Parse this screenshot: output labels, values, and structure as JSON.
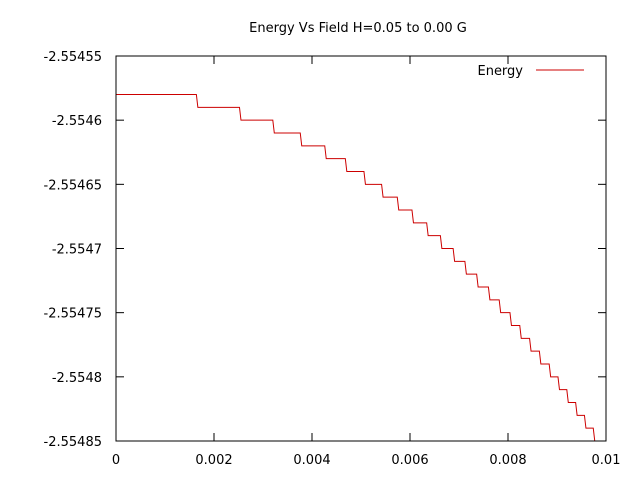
{
  "chart_data": {
    "type": "line",
    "title": "Energy Vs Field H=0.05 to 0.00 G",
    "xlabel": "",
    "ylabel": "",
    "xlim": [
      0,
      0.01
    ],
    "ylim": [
      -2.55485,
      -2.55455
    ],
    "x_ticks": [
      0,
      0.002,
      0.004,
      0.006,
      0.008,
      0.01
    ],
    "x_tick_labels": [
      "0",
      "0.002",
      "0.004",
      "0.006",
      "0.008",
      "0.01"
    ],
    "y_ticks": [
      -2.55455,
      -2.5546,
      -2.55465,
      -2.5547,
      -2.55475,
      -2.5548,
      -2.55485
    ],
    "y_tick_labels": [
      "-2.55455",
      "-2.5546",
      "-2.55465",
      "-2.5547",
      "-2.55475",
      "-2.5548",
      "-2.55485"
    ],
    "grid": false,
    "legend_position": "top-right",
    "series": [
      {
        "name": "Energy",
        "color": "#cc0000",
        "step": true,
        "points": [
          [
            0,
            -2.55458
          ],
          [
            0.00164,
            -2.55459
          ],
          [
            0.00252,
            -2.5546
          ],
          [
            0.0032,
            -2.55461
          ],
          [
            0.00376,
            -2.55462
          ],
          [
            0.00426,
            -2.55463
          ],
          [
            0.00468,
            -2.55464
          ],
          [
            0.00506,
            -2.55465
          ],
          [
            0.00542,
            -2.55466
          ],
          [
            0.00574,
            -2.55467
          ],
          [
            0.00604,
            -2.55468
          ],
          [
            0.00634,
            -2.55469
          ],
          [
            0.00662,
            -2.5547
          ],
          [
            0.00688,
            -2.55471
          ],
          [
            0.00712,
            -2.55472
          ],
          [
            0.00736,
            -2.55473
          ],
          [
            0.0076,
            -2.55474
          ],
          [
            0.00782,
            -2.55475
          ],
          [
            0.00804,
            -2.55476
          ],
          [
            0.00824,
            -2.55477
          ],
          [
            0.00844,
            -2.55478
          ],
          [
            0.00864,
            -2.55479
          ],
          [
            0.00884,
            -2.5548
          ],
          [
            0.00902,
            -2.55481
          ],
          [
            0.0092,
            -2.55482
          ],
          [
            0.00938,
            -2.55483
          ],
          [
            0.00956,
            -2.55484
          ],
          [
            0.00974,
            -2.55485
          ],
          [
            0.00992,
            -2.55486
          ],
          [
            0.01,
            -2.55486
          ]
        ]
      }
    ]
  }
}
